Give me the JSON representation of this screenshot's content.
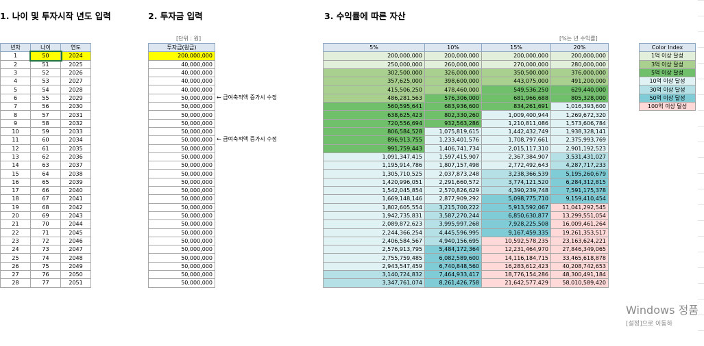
{
  "titles": {
    "s1": "1. 나이 및 투자시작 년도 입력",
    "s2": "2. 투자금 입력",
    "s3": "3. 수익률에 따른 자산"
  },
  "units": {
    "s2": "[단위 : 원]",
    "s3": "[%는 년 수익률]"
  },
  "table1": {
    "headers": [
      "년차",
      "나이",
      "연도"
    ],
    "rows": [
      [
        "1",
        "50",
        "2024"
      ],
      [
        "2",
        "51",
        "2025"
      ],
      [
        "3",
        "52",
        "2026"
      ],
      [
        "4",
        "53",
        "2027"
      ],
      [
        "5",
        "54",
        "2028"
      ],
      [
        "6",
        "55",
        "2029"
      ],
      [
        "7",
        "56",
        "2030"
      ],
      [
        "8",
        "57",
        "2031"
      ],
      [
        "9",
        "58",
        "2032"
      ],
      [
        "10",
        "59",
        "2033"
      ],
      [
        "11",
        "60",
        "2034"
      ],
      [
        "12",
        "61",
        "2035"
      ],
      [
        "13",
        "62",
        "2036"
      ],
      [
        "14",
        "63",
        "2037"
      ],
      [
        "15",
        "64",
        "2038"
      ],
      [
        "16",
        "65",
        "2039"
      ],
      [
        "17",
        "66",
        "2040"
      ],
      [
        "18",
        "67",
        "2041"
      ],
      [
        "19",
        "68",
        "2042"
      ],
      [
        "20",
        "69",
        "2043"
      ],
      [
        "21",
        "70",
        "2044"
      ],
      [
        "22",
        "71",
        "2045"
      ],
      [
        "23",
        "72",
        "2046"
      ],
      [
        "24",
        "73",
        "2047"
      ],
      [
        "25",
        "74",
        "2048"
      ],
      [
        "26",
        "75",
        "2049"
      ],
      [
        "27",
        "76",
        "2050"
      ],
      [
        "28",
        "77",
        "2051"
      ]
    ]
  },
  "table2": {
    "header": "투자금(원금)",
    "rows": [
      "200,000,000",
      "40,000,000",
      "40,000,000",
      "40,000,000",
      "40,000,000",
      "50,000,000",
      "50,000,000",
      "50,000,000",
      "50,000,000",
      "50,000,000",
      "50,000,000",
      "50,000,000",
      "50,000,000",
      "50,000,000",
      "50,000,000",
      "50,000,000",
      "50,000,000",
      "50,000,000",
      "50,000,000",
      "50,000,000",
      "50,000,000",
      "50,000,000",
      "50,000,000",
      "50,000,000",
      "50,000,000",
      "50,000,000",
      "50,000,000",
      "50,000,000"
    ],
    "notes": [
      {
        "row": 5,
        "text": "← 급여축적액 증가시 수정"
      },
      {
        "row": 10,
        "text": "← 급여축적액 증가시 수정"
      }
    ]
  },
  "table3": {
    "headers": [
      "5%",
      "10%",
      "15%",
      "20%"
    ],
    "rows": [
      [
        "200,000,000",
        "200,000,000",
        "200,000,000",
        "200,000,000"
      ],
      [
        "250,000,000",
        "260,000,000",
        "270,000,000",
        "280,000,000"
      ],
      [
        "302,500,000",
        "326,000,000",
        "350,500,000",
        "376,000,000"
      ],
      [
        "357,625,000",
        "398,600,000",
        "443,075,000",
        "491,200,000"
      ],
      [
        "415,506,250",
        "478,460,000",
        "549,536,250",
        "629,440,000"
      ],
      [
        "486,281,563",
        "576,306,000",
        "681,966,688",
        "805,328,000"
      ],
      [
        "560,595,641",
        "683,936,600",
        "834,261,691",
        "1,016,393,600"
      ],
      [
        "638,625,423",
        "802,330,260",
        "1,009,400,944",
        "1,269,672,320"
      ],
      [
        "720,556,694",
        "932,563,286",
        "1,210,811,086",
        "1,573,606,784"
      ],
      [
        "806,584,528",
        "1,075,819,615",
        "1,442,432,749",
        "1,938,328,141"
      ],
      [
        "896,913,755",
        "1,233,401,576",
        "1,708,797,661",
        "2,375,993,769"
      ],
      [
        "991,759,443",
        "1,406,741,734",
        "2,015,117,310",
        "2,901,192,523"
      ],
      [
        "1,091,347,415",
        "1,597,415,907",
        "2,367,384,907",
        "3,531,431,027"
      ],
      [
        "1,195,914,786",
        "1,807,157,498",
        "2,772,492,643",
        "4,287,717,233"
      ],
      [
        "1,305,710,525",
        "2,037,873,248",
        "3,238,366,539",
        "5,195,260,679"
      ],
      [
        "1,420,996,051",
        "2,291,660,572",
        "3,774,121,520",
        "6,284,312,815"
      ],
      [
        "1,542,045,854",
        "2,570,826,629",
        "4,390,239,748",
        "7,591,175,378"
      ],
      [
        "1,669,148,146",
        "2,877,909,292",
        "5,098,775,710",
        "9,159,410,454"
      ],
      [
        "1,802,605,554",
        "3,215,700,222",
        "5,913,592,067",
        "11,041,292,545"
      ],
      [
        "1,942,735,831",
        "3,587,270,244",
        "6,850,630,877",
        "13,299,551,054"
      ],
      [
        "2,089,872,623",
        "3,995,997,268",
        "7,928,225,508",
        "16,009,461,264"
      ],
      [
        "2,244,366,254",
        "4,445,596,995",
        "9,167,459,335",
        "19,261,353,517"
      ],
      [
        "2,406,584,567",
        "4,940,156,695",
        "10,592,578,235",
        "23,163,624,221"
      ],
      [
        "2,576,913,795",
        "5,484,172,364",
        "12,231,464,970",
        "27,846,349,065"
      ],
      [
        "2,755,759,485",
        "6,082,589,600",
        "14,116,184,715",
        "33,465,618,878"
      ],
      [
        "2,943,547,459",
        "6,740,848,560",
        "16,283,612,423",
        "40,208,742,653"
      ],
      [
        "3,140,724,832",
        "7,464,933,417",
        "18,776,154,286",
        "48,300,491,184"
      ],
      [
        "3,347,761,074",
        "8,261,426,758",
        "21,642,577,429",
        "58,010,589,420"
      ]
    ]
  },
  "colorIndex": {
    "header": "Color Index",
    "items": [
      {
        "label": "1억 이상 달성",
        "color": "#e2efda"
      },
      {
        "label": "3억 이상 달성",
        "color": "#a9d08e"
      },
      {
        "label": "5억 이상 달성",
        "color": "#70bf6a"
      },
      {
        "label": "10억 이상 달성",
        "color": "#e0f2f4"
      },
      {
        "label": "30억 이상 달성",
        "color": "#b4e0e6"
      },
      {
        "label": "50억 이상 달성",
        "color": "#7fcbd6"
      },
      {
        "label": "100억 이상 달성",
        "color": "#ffd9d7"
      }
    ]
  },
  "colors": {
    "header": "#dce6f1",
    "highlight": "#ffff00"
  },
  "watermark": {
    "line1": "Windows 정품",
    "line2": "[설정]으로 이동하"
  }
}
